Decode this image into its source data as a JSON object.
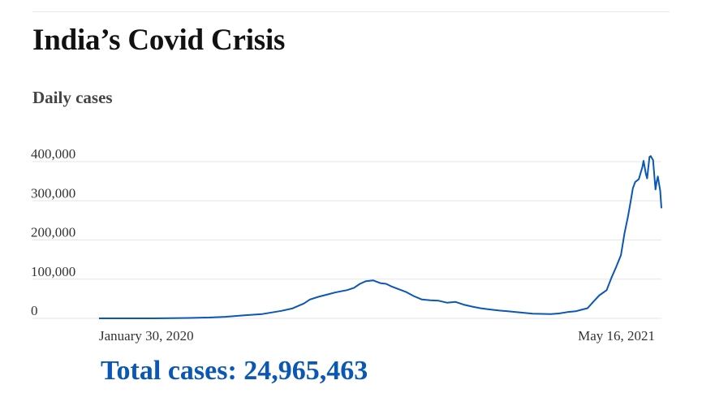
{
  "header": {
    "title": "India’s Covid Crisis",
    "subtitle": "Daily cases"
  },
  "footer": {
    "total_label": "Total cases: 24,965,463"
  },
  "colors": {
    "line": "#0a57b5",
    "grid": "#e6e6e6",
    "total_text": "#0a57b5"
  },
  "chart_data": {
    "type": "line",
    "title": "Daily cases",
    "xlabel": "",
    "ylabel": "",
    "grid": true,
    "legend": "none",
    "ylim": [
      0,
      400000
    ],
    "y_ticks": [
      {
        "value": 0,
        "label": "0"
      },
      {
        "value": 100000,
        "label": "100,000"
      },
      {
        "value": 200000,
        "label": "200,000"
      },
      {
        "value": 300000,
        "label": "300,000"
      },
      {
        "value": 400000,
        "label": "400,000"
      }
    ],
    "x_range": [
      "2020-01-30",
      "2021-05-16"
    ],
    "x_tick_labels": [
      {
        "date": "2020-01-30",
        "label": "January 30, 2020"
      },
      {
        "date": "2021-05-16",
        "label": "May 16, 2021"
      }
    ],
    "series": [
      {
        "name": "",
        "points": [
          [
            "2020-01-30",
            0
          ],
          [
            "2020-02-20",
            0
          ],
          [
            "2020-03-15",
            100
          ],
          [
            "2020-04-01",
            400
          ],
          [
            "2020-04-15",
            1000
          ],
          [
            "2020-05-01",
            2000
          ],
          [
            "2020-05-15",
            4000
          ],
          [
            "2020-06-01",
            8000
          ],
          [
            "2020-06-15",
            11000
          ],
          [
            "2020-07-01",
            19000
          ],
          [
            "2020-07-10",
            25000
          ],
          [
            "2020-07-20",
            38000
          ],
          [
            "2020-07-25",
            48000
          ],
          [
            "2020-08-01",
            55000
          ],
          [
            "2020-08-10",
            62000
          ],
          [
            "2020-08-15",
            66000
          ],
          [
            "2020-08-20",
            69000
          ],
          [
            "2020-08-25",
            72000
          ],
          [
            "2020-08-31",
            78000
          ],
          [
            "2020-09-05",
            88000
          ],
          [
            "2020-09-10",
            95000
          ],
          [
            "2020-09-16",
            97000
          ],
          [
            "2020-09-22",
            90000
          ],
          [
            "2020-09-27",
            88000
          ],
          [
            "2020-10-01",
            82000
          ],
          [
            "2020-10-07",
            75000
          ],
          [
            "2020-10-14",
            67000
          ],
          [
            "2020-10-20",
            57000
          ],
          [
            "2020-10-27",
            48000
          ],
          [
            "2020-11-03",
            46000
          ],
          [
            "2020-11-10",
            45000
          ],
          [
            "2020-11-17",
            40000
          ],
          [
            "2020-11-24",
            42000
          ],
          [
            "2020-12-01",
            35000
          ],
          [
            "2020-12-08",
            30000
          ],
          [
            "2020-12-15",
            26000
          ],
          [
            "2020-12-22",
            23000
          ],
          [
            "2020-12-31",
            20000
          ],
          [
            "2021-01-07",
            18000
          ],
          [
            "2021-01-14",
            16000
          ],
          [
            "2021-01-21",
            14000
          ],
          [
            "2021-01-28",
            12000
          ],
          [
            "2021-02-05",
            11500
          ],
          [
            "2021-02-12",
            11000
          ],
          [
            "2021-02-19",
            12500
          ],
          [
            "2021-02-26",
            16000
          ],
          [
            "2021-03-05",
            18000
          ],
          [
            "2021-03-10",
            22000
          ],
          [
            "2021-03-15",
            26000
          ],
          [
            "2021-03-20",
            43000
          ],
          [
            "2021-03-25",
            59000
          ],
          [
            "2021-03-31",
            72000
          ],
          [
            "2021-04-04",
            103000
          ],
          [
            "2021-04-08",
            131000
          ],
          [
            "2021-04-12",
            161000
          ],
          [
            "2021-04-15",
            217000
          ],
          [
            "2021-04-18",
            261000
          ],
          [
            "2021-04-20",
            295000
          ],
          [
            "2021-04-22",
            332000
          ],
          [
            "2021-04-24",
            348000
          ],
          [
            "2021-04-27",
            355000
          ],
          [
            "2021-04-30",
            386000
          ],
          [
            "2021-05-01",
            402000
          ],
          [
            "2021-05-03",
            368000
          ],
          [
            "2021-05-04",
            357000
          ],
          [
            "2021-05-06",
            412000
          ],
          [
            "2021-05-07",
            414000
          ],
          [
            "2021-05-09",
            404000
          ],
          [
            "2021-05-10",
            366000
          ],
          [
            "2021-05-11",
            329000
          ],
          [
            "2021-05-12",
            348000
          ],
          [
            "2021-05-13",
            362000
          ],
          [
            "2021-05-14",
            343000
          ],
          [
            "2021-05-15",
            326000
          ],
          [
            "2021-05-16",
            281000
          ]
        ]
      }
    ]
  }
}
